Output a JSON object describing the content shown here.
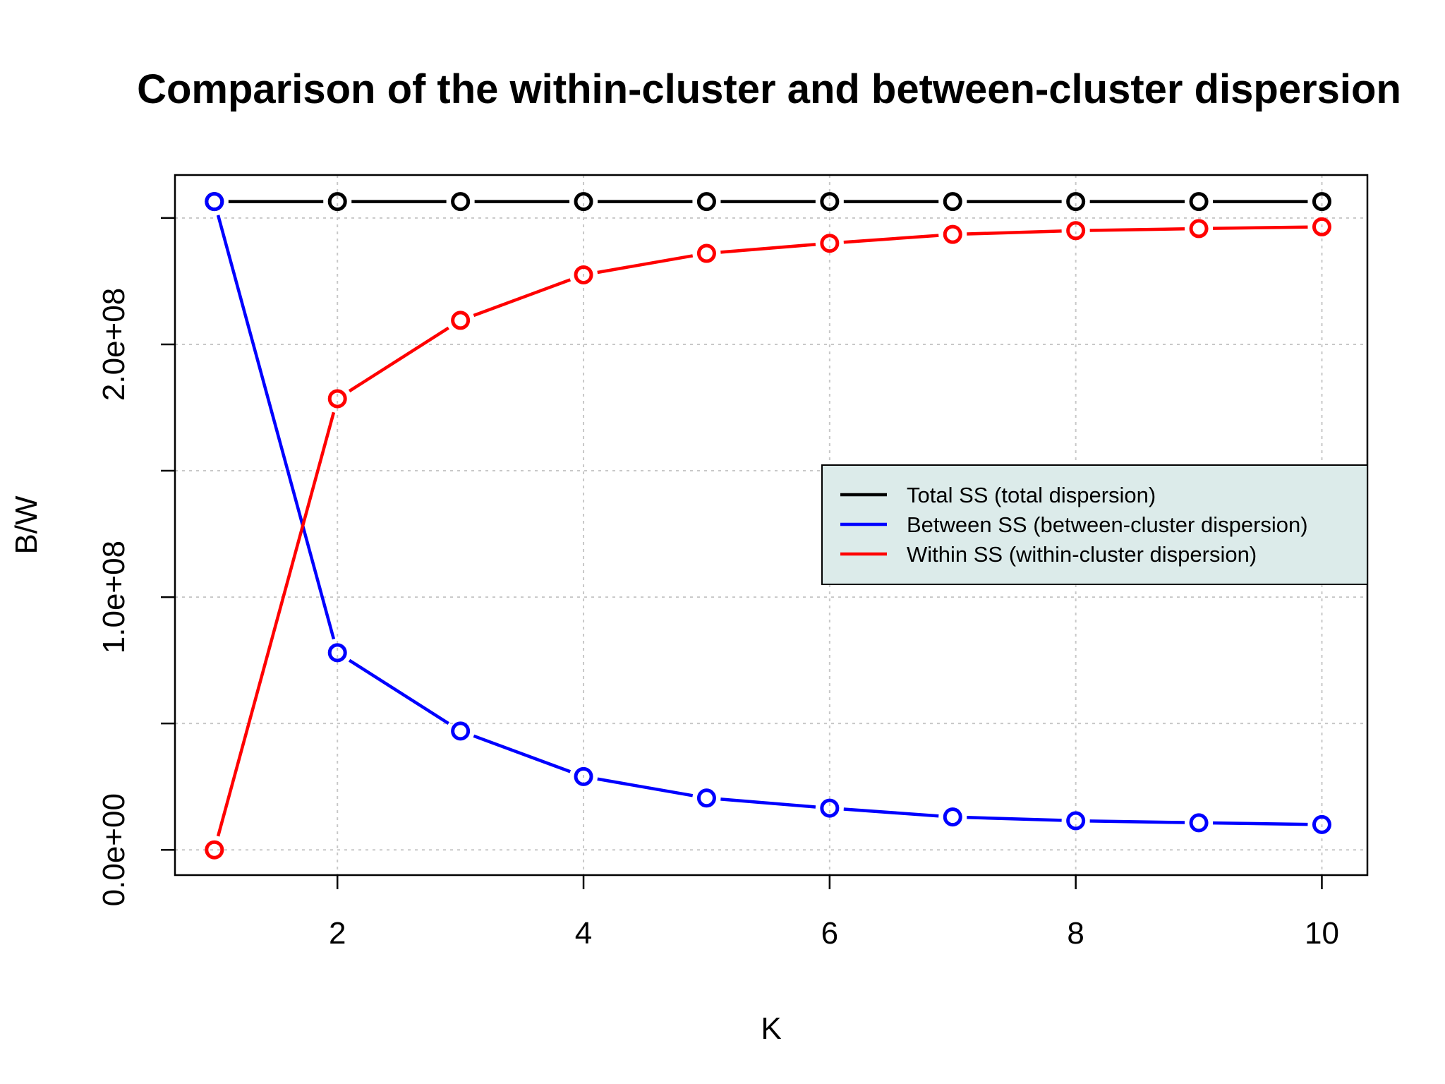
{
  "chart_data": {
    "type": "line",
    "title": "Comparison of the within-cluster and between-cluster dispersion",
    "xlabel": "K",
    "ylabel": "B/W",
    "x": [
      1,
      2,
      3,
      4,
      5,
      6,
      7,
      8,
      9,
      10
    ],
    "xlim": [
      0.68,
      10.37
    ],
    "ylim": [
      -10000000,
      267000000
    ],
    "x_ticks": [
      2,
      4,
      6,
      8,
      10
    ],
    "x_tick_labels": [
      "2",
      "4",
      "6",
      "8",
      "10"
    ],
    "y_ticks": [
      0,
      100000000,
      200000000
    ],
    "y_tick_labels": [
      "0.0e+00",
      "1.0e+08",
      "2.0e+08"
    ],
    "grid_x": [
      2,
      4,
      6,
      8,
      10
    ],
    "grid_y": [
      0,
      50000000,
      100000000,
      150000000,
      200000000,
      250000000
    ],
    "grid": true,
    "legend_position": "right",
    "legend_background": "#dcebea",
    "series": [
      {
        "name": "Total SS (total dispersion)",
        "color": "#000000",
        "values": [
          256500000,
          256500000,
          256500000,
          256500000,
          256500000,
          256500000,
          256500000,
          256500000,
          256500000,
          256500000
        ]
      },
      {
        "name": "Between SS (between-cluster dispersion)",
        "color": "#0000ff",
        "values": [
          256500000,
          78000000,
          47000000,
          29000000,
          20500000,
          16500000,
          13000000,
          11500000,
          10700000,
          10000000
        ]
      },
      {
        "name": "Within SS (within-cluster dispersion)",
        "color": "#ff0000",
        "values": [
          0,
          178500000,
          209500000,
          227500000,
          236000000,
          240000000,
          243500000,
          245000000,
          245800000,
          246500000
        ]
      }
    ]
  }
}
